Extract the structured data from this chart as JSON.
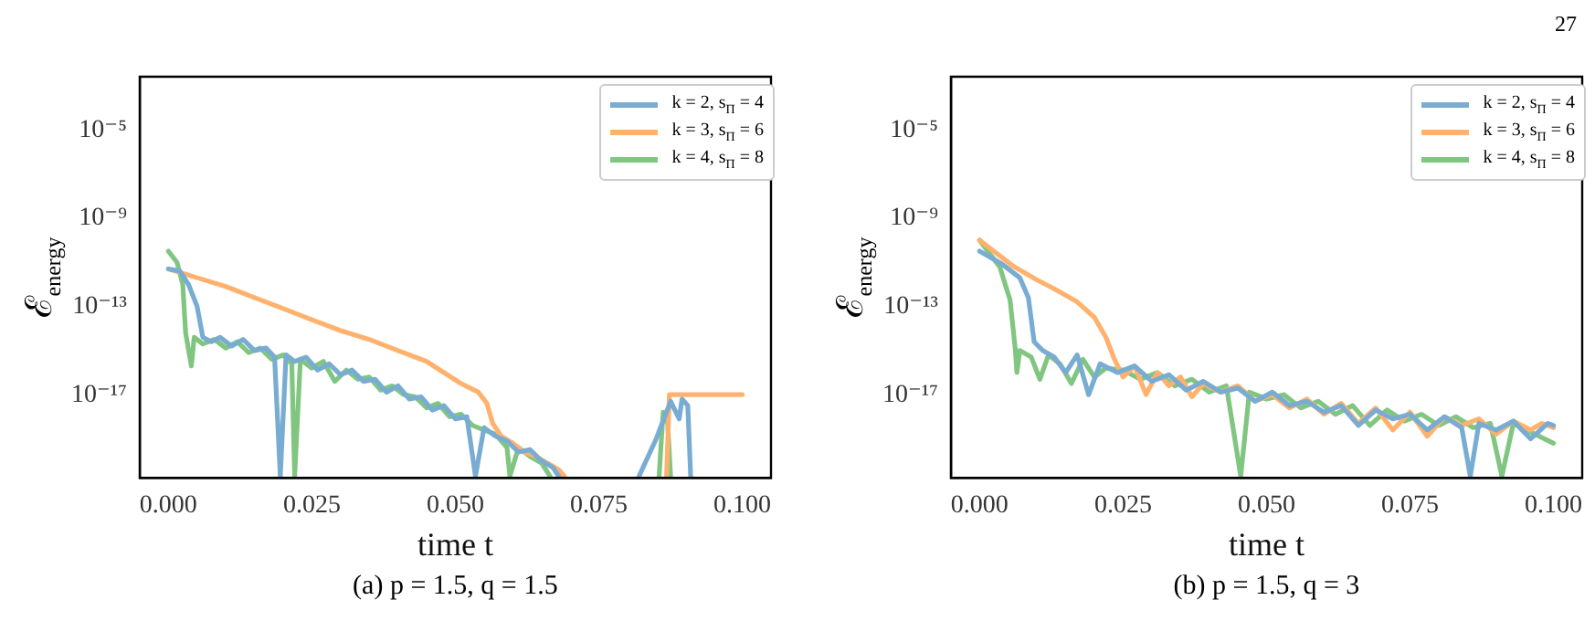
{
  "chart_data": [
    {
      "type": "line",
      "xlabel": "time t",
      "ylabel": "ℰ$_{energy}$",
      "annotations": [
        "(a) p = 1.5, q = 1.5"
      ],
      "log": "y",
      "grid": false,
      "legend": "top right",
      "marker": "none",
      "line_style": "solid",
      "xlim": [
        -0.005,
        0.105
      ],
      "xticks": [
        {
          "value": 0,
          "label": "0.000"
        },
        {
          "value": 0.025,
          "label": "0.025"
        },
        {
          "value": 0.05,
          "label": "0.050"
        },
        {
          "value": 0.075,
          "label": "0.075"
        },
        {
          "value": 0.1,
          "label": "0.100"
        }
      ],
      "ylim": [
        1.7e-21,
        0.0026
      ],
      "yticks": [
        {
          "value": 1e-17,
          "label": "10⁻¹⁷"
        },
        {
          "value": 1e-13,
          "label": "10⁻¹³"
        },
        {
          "value": 1e-09,
          "label": "10⁻⁹"
        },
        {
          "value": 1e-05,
          "label": "10⁻⁵"
        }
      ],
      "series": [
        {
          "name": "k = 2, s$_{Π}$ = 4",
          "color": "#79acd2",
          "x": [
            0,
            0.002,
            0.0035,
            0.005,
            0.006,
            0.0075,
            0.009,
            0.011,
            0.013,
            0.015,
            0.017,
            0.0185,
            0.0195,
            0.0205,
            0.022,
            0.024,
            0.026,
            0.028,
            0.03,
            0.032,
            0.034,
            0.036,
            0.038,
            0.04,
            0.042,
            0.044,
            0.046,
            0.048,
            0.05,
            0.052,
            0.0535,
            0.055,
            0.057,
            0.059,
            0.061,
            0.063,
            0.065,
            0.067,
            0.068,
            0.075,
            0.082,
            0.085,
            0.0875,
            0.089,
            0.0895,
            0.0905,
            0.091
          ],
          "values": [
            5e-12,
            4e-12,
            1e-12,
            1e-13,
            4e-15,
            2.5e-15,
            4e-15,
            1.6e-15,
            3.2e-15,
            1e-15,
            1.3e-15,
            5e-16,
            2e-21,
            6.3e-16,
            3.2e-16,
            5e-16,
            1.3e-16,
            2.5e-16,
            8e-17,
            1.3e-16,
            4e-17,
            5e-17,
            1.3e-17,
            2.5e-17,
            6.3e-18,
            8e-18,
            2e-18,
            3.2e-18,
            8e-19,
            1e-18,
            2e-21,
            3.2e-19,
            1.3e-19,
            8e-20,
            2.5e-20,
            3.2e-20,
            1e-20,
            5e-21,
            2e-21,
            null,
            2e-21,
            1e-19,
            5e-18,
            8e-19,
            6.3e-18,
            3.2e-18,
            2e-21
          ]
        },
        {
          "name": "k = 3, s$_{Π}$ = 6",
          "color": "#ffb26e",
          "x": [
            0,
            0.005,
            0.01,
            0.015,
            0.02,
            0.025,
            0.03,
            0.035,
            0.04,
            0.045,
            0.048,
            0.051,
            0.054,
            0.0555,
            0.0565,
            0.058,
            0.06,
            0.062,
            0.064,
            0.066,
            0.068,
            0.069,
            0.075,
            0.0868,
            0.0873,
            0.1
          ],
          "values": [
            5e-12,
            2e-12,
            8e-13,
            2.5e-13,
            8e-14,
            2.5e-14,
            8e-15,
            3.2e-15,
            1e-15,
            3.2e-16,
            1e-16,
            3.2e-17,
            1.3e-17,
            4e-18,
            5e-19,
            1.3e-19,
            6.3e-20,
            2.5e-20,
            1.6e-20,
            8e-21,
            4e-21,
            2e-21,
            null,
            2e-21,
            1e-17,
            1e-17
          ]
        },
        {
          "name": "k = 4, s$_{Π}$ = 8",
          "color": "#80c680",
          "x": [
            0,
            0.0015,
            0.0025,
            0.003,
            0.004,
            0.0045,
            0.006,
            0.008,
            0.01,
            0.012,
            0.014,
            0.016,
            0.018,
            0.02,
            0.0215,
            0.022,
            0.023,
            0.025,
            0.027,
            0.029,
            0.031,
            0.033,
            0.035,
            0.037,
            0.039,
            0.041,
            0.043,
            0.045,
            0.047,
            0.049,
            0.051,
            0.053,
            0.055,
            0.057,
            0.059,
            0.0595,
            0.061,
            0.063,
            0.065,
            0.0665,
            0.075,
            0.0855,
            0.0862,
            0.087,
            0.0875
          ],
          "values": [
            3.2e-11,
            1e-11,
            1e-12,
            6.3e-15,
            2e-16,
            4e-15,
            2e-15,
            3.2e-15,
            1.3e-15,
            2.5e-15,
            8e-16,
            1.3e-15,
            4e-16,
            6.3e-16,
            2.5e-16,
            2e-21,
            4e-16,
            1.6e-16,
            3.2e-16,
            4e-17,
            1.3e-16,
            5e-17,
            6.3e-17,
            1.6e-17,
            2.5e-17,
            1e-17,
            8e-18,
            2.5e-18,
            4e-18,
            1e-18,
            1.3e-18,
            4e-19,
            2.5e-19,
            1.6e-19,
            4e-20,
            2e-21,
            4e-20,
            1.6e-20,
            8e-21,
            2e-21,
            null,
            2e-21,
            1.6e-18,
            5e-19,
            2e-21
          ]
        }
      ]
    },
    {
      "type": "line",
      "xlabel": "time t",
      "ylabel": "ℰ$_{energy}$",
      "annotations": [
        "(b) p = 1.5, q = 3",
        "27"
      ],
      "log": "y",
      "grid": false,
      "legend": "top right",
      "marker": "none",
      "line_style": "solid",
      "xlim": [
        -0.005,
        0.105
      ],
      "xticks": [
        {
          "value": 0,
          "label": "0.000"
        },
        {
          "value": 0.025,
          "label": "0.025"
        },
        {
          "value": 0.05,
          "label": "0.050"
        },
        {
          "value": 0.075,
          "label": "0.075"
        },
        {
          "value": 0.1,
          "label": "0.100"
        }
      ],
      "ylim": [
        1.7e-21,
        0.0026
      ],
      "yticks": [
        {
          "value": 1e-17,
          "label": "10⁻¹⁷"
        },
        {
          "value": 1e-13,
          "label": "10⁻¹³"
        },
        {
          "value": 1e-09,
          "label": "10⁻⁹"
        },
        {
          "value": 1e-05,
          "label": "10⁻⁵"
        }
      ],
      "series": [
        {
          "name": "k = 2, s$_{Π}$ = 4",
          "color": "#79acd2",
          "x": [
            0,
            0.004,
            0.007,
            0.0085,
            0.0095,
            0.011,
            0.013,
            0.015,
            0.017,
            0.019,
            0.021,
            0.024,
            0.027,
            0.03,
            0.033,
            0.036,
            0.039,
            0.042,
            0.045,
            0.048,
            0.051,
            0.054,
            0.057,
            0.06,
            0.063,
            0.066,
            0.069,
            0.072,
            0.075,
            0.078,
            0.081,
            0.084,
            0.0855,
            0.087,
            0.09,
            0.093,
            0.096,
            0.099,
            0.1
          ],
          "values": [
            3.2e-11,
            8e-12,
            2e-12,
            2.5e-13,
            2.5e-15,
            1e-15,
            5e-16,
            1e-16,
            6.3e-16,
            1e-17,
            2.5e-16,
            1e-16,
            2e-16,
            4e-17,
            8e-17,
            1.6e-17,
            4e-17,
            1.3e-17,
            2e-17,
            5e-18,
            1.3e-17,
            3.2e-18,
            5e-18,
            1.6e-18,
            3.2e-18,
            4e-19,
            2e-18,
            8e-19,
            1.3e-18,
            2.5e-19,
            1e-18,
            3.2e-19,
            2e-21,
            5e-19,
            2.5e-19,
            6.3e-19,
            1e-19,
            5e-19,
            4e-19
          ]
        },
        {
          "name": "k = 3, s$_{Π}$ = 6",
          "color": "#ffb26e",
          "x": [
            0,
            0.003,
            0.006,
            0.01,
            0.013,
            0.017,
            0.02,
            0.022,
            0.0235,
            0.025,
            0.027,
            0.029,
            0.031,
            0.033,
            0.035,
            0.037,
            0.039,
            0.042,
            0.045,
            0.048,
            0.051,
            0.054,
            0.057,
            0.06,
            0.063,
            0.066,
            0.069,
            0.072,
            0.075,
            0.078,
            0.081,
            0.084,
            0.087,
            0.09,
            0.093,
            0.096,
            0.098,
            0.1
          ],
          "values": [
            1e-10,
            2.5e-11,
            6.3e-12,
            1.6e-12,
            6.3e-13,
            1.6e-13,
            3.2e-14,
            4e-15,
            4e-16,
            6.3e-17,
            2e-16,
            1e-17,
            1e-16,
            2.5e-17,
            6.3e-17,
            8e-18,
            3.2e-17,
            1.3e-17,
            2.5e-17,
            5e-18,
            1e-17,
            2.5e-18,
            6.3e-18,
            1.3e-18,
            4e-18,
            5e-19,
            2.5e-18,
            2.5e-19,
            1.6e-18,
            1.3e-19,
            1e-18,
            4e-19,
            8e-19,
            1.6e-19,
            6.3e-19,
            2.5e-19,
            5e-19,
            3.2e-19
          ]
        },
        {
          "name": "k = 4, s$_{Π}$ = 8",
          "color": "#80c680",
          "x": [
            0,
            0.0035,
            0.0053,
            0.0062,
            0.0065,
            0.007,
            0.009,
            0.0105,
            0.012,
            0.014,
            0.016,
            0.018,
            0.02,
            0.022,
            0.025,
            0.028,
            0.031,
            0.034,
            0.037,
            0.04,
            0.043,
            0.0455,
            0.047,
            0.05,
            0.053,
            0.056,
            0.059,
            0.062,
            0.065,
            0.068,
            0.071,
            0.074,
            0.077,
            0.08,
            0.083,
            0.086,
            0.089,
            0.091,
            0.093,
            0.096,
            0.1
          ],
          "values": [
            1e-10,
            6.3e-12,
            2e-13,
            1.3e-15,
            1e-16,
            1e-15,
            5e-16,
            5e-17,
            6.3e-16,
            2.5e-16,
            3.2e-17,
            4e-16,
            6.3e-17,
            1.6e-16,
            1.3e-16,
            5e-17,
            1e-16,
            2.5e-17,
            5e-17,
            1.3e-17,
            2.5e-17,
            2e-21,
            1.3e-17,
            6.3e-18,
            1e-17,
            2.5e-18,
            5e-18,
            1.3e-18,
            3.2e-18,
            4e-19,
            2e-18,
            6.3e-19,
            1.3e-18,
            4e-19,
            1e-18,
            3.2e-19,
            5e-19,
            2e-21,
            5e-19,
            2e-19,
            6.3e-20
          ]
        }
      ]
    }
  ]
}
